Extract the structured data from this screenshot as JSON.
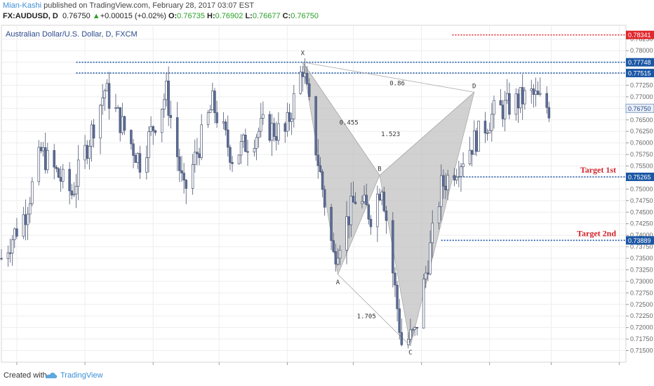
{
  "header": {
    "author": "Mian-Kashi",
    "published": " published on TradingView.com, February 28, 2017 03:07 EST",
    "symbol": "FX:AUDUSD, D",
    "price": "0.76750",
    "change": "+0.00015 (+0.02%)",
    "o_label": "O:",
    "o_value": "0.76735",
    "h_label": "H:",
    "h_value": "0.76902",
    "l_label": "L:",
    "l_value": "0.76677",
    "c_label": "C:",
    "c_value": "0.76750"
  },
  "footer": {
    "created_label": "Created with",
    "brand": "TradingView"
  },
  "colors": {
    "up": "#ffffff",
    "down": "#5b6e9c",
    "wick": "#4a5470",
    "pattern_fill": "#bdbdbd",
    "blue_line": "#1c57a5",
    "red_line": "#e0282e",
    "target_text": "#d2232a",
    "grid": "#eeeeee"
  },
  "chart_data": {
    "type": "candlestick",
    "title": "Australian Dollar/U.S. Dollar, D, FXCM",
    "ylim": [
      0.7125,
      0.7855
    ],
    "y_ticks": [
      "0.71500",
      "0.71750",
      "0.72000",
      "0.72250",
      "0.72500",
      "0.72750",
      "0.73000",
      "0.73250",
      "0.73500",
      "0.73750",
      "0.74000",
      "0.74250",
      "0.74500",
      "0.74750",
      "0.75000",
      "0.75250",
      "0.75500",
      "0.75750",
      "0.76000",
      "0.76250",
      "0.76500",
      "0.76750",
      "0.77000",
      "0.77250",
      "0.77500",
      "0.77750",
      "0.78000",
      "0.78250"
    ],
    "x_ticks": [
      {
        "label": "Jul",
        "date": "2016-07-01",
        "bold": false
      },
      {
        "label": "Aug",
        "date": "2016-08-01",
        "bold": false
      },
      {
        "label": "Sep",
        "date": "2016-09-01",
        "bold": false
      },
      {
        "label": "Oct",
        "date": "2016-10-01",
        "bold": false
      },
      {
        "label": "Nov",
        "date": "2016-11-01",
        "bold": false
      },
      {
        "label": "Dec",
        "date": "2016-12-01",
        "bold": false
      },
      {
        "label": "2017",
        "date": "2017-01-01",
        "bold": true
      },
      {
        "label": "Feb",
        "date": "2017-02-01",
        "bold": false
      },
      {
        "label": "Mar",
        "date": "2017-03-01",
        "bold": false
      },
      {
        "label": "Apr",
        "date": "2017-04-01",
        "bold": false
      }
    ],
    "x_range": [
      "2016-06-24",
      "2017-04-04"
    ],
    "current_price": 0.7675,
    "current_label": "0.76750",
    "anchors": [
      {
        "date": "2016-06-24",
        "price": 0.735
      },
      {
        "date": "2016-07-05",
        "price": 0.745
      },
      {
        "date": "2016-07-12",
        "price": 0.758
      },
      {
        "date": "2016-07-26",
        "price": 0.749
      },
      {
        "date": "2016-08-10",
        "price": 0.7715
      },
      {
        "date": "2016-08-26",
        "price": 0.756
      },
      {
        "date": "2016-09-07",
        "price": 0.771
      },
      {
        "date": "2016-09-15",
        "price": 0.749
      },
      {
        "date": "2016-09-28",
        "price": 0.7685
      },
      {
        "date": "2016-10-07",
        "price": 0.757
      },
      {
        "date": "2016-10-21",
        "price": 0.7635
      },
      {
        "date": "2016-10-31",
        "price": 0.762
      },
      {
        "date": "2016-11-08",
        "price": 0.7765
      },
      {
        "date": "2016-11-22",
        "price": 0.7355
      },
      {
        "date": "2016-12-02",
        "price": 0.748
      },
      {
        "date": "2016-12-09",
        "price": 0.7445
      },
      {
        "date": "2016-12-14",
        "price": 0.7515
      },
      {
        "date": "2016-12-23",
        "price": 0.7165
      },
      {
        "date": "2016-12-29",
        "price": 0.7185
      },
      {
        "date": "2017-01-10",
        "price": 0.7505
      },
      {
        "date": "2017-01-20",
        "price": 0.757
      },
      {
        "date": "2017-02-03",
        "price": 0.7665
      },
      {
        "date": "2017-02-20",
        "price": 0.7705
      },
      {
        "date": "2017-02-28",
        "price": 0.7675
      }
    ],
    "pattern": {
      "points": [
        {
          "label": "X",
          "date": "2016-11-08",
          "price": 0.7775
        },
        {
          "label": "A",
          "date": "2016-11-24",
          "price": 0.7315
        },
        {
          "label": "B",
          "date": "2016-12-13",
          "price": 0.753
        },
        {
          "label": "C",
          "date": "2016-12-27",
          "price": 0.716
        },
        {
          "label": "D",
          "date": "2017-01-25",
          "price": 0.771
        }
      ],
      "ratios": [
        {
          "label": "0.455",
          "date": "2016-11-29",
          "price": 0.764
        },
        {
          "label": "0.86",
          "date": "2016-12-21",
          "price": 0.7725
        },
        {
          "label": "1.523",
          "date": "2016-12-18",
          "price": 0.7615
        },
        {
          "label": "1.705",
          "date": "2016-12-07",
          "price": 0.722
        }
      ]
    },
    "levels": [
      {
        "price": 0.78341,
        "label": "0.78341",
        "color": "red",
        "from": "2017-01-15"
      },
      {
        "price": 0.77748,
        "label": "0.77748",
        "color": "blue",
        "from": "2016-07-28"
      },
      {
        "price": 0.77515,
        "label": "0.77515",
        "color": "blue",
        "from": "2016-07-28"
      },
      {
        "price": 0.75265,
        "label": "0.75265",
        "color": "blue",
        "from": "2017-01-15",
        "text": "Target 1st"
      },
      {
        "price": 0.73889,
        "label": "0.73889",
        "color": "blue",
        "from": "2017-01-10",
        "text": "Target 2nd"
      }
    ]
  }
}
